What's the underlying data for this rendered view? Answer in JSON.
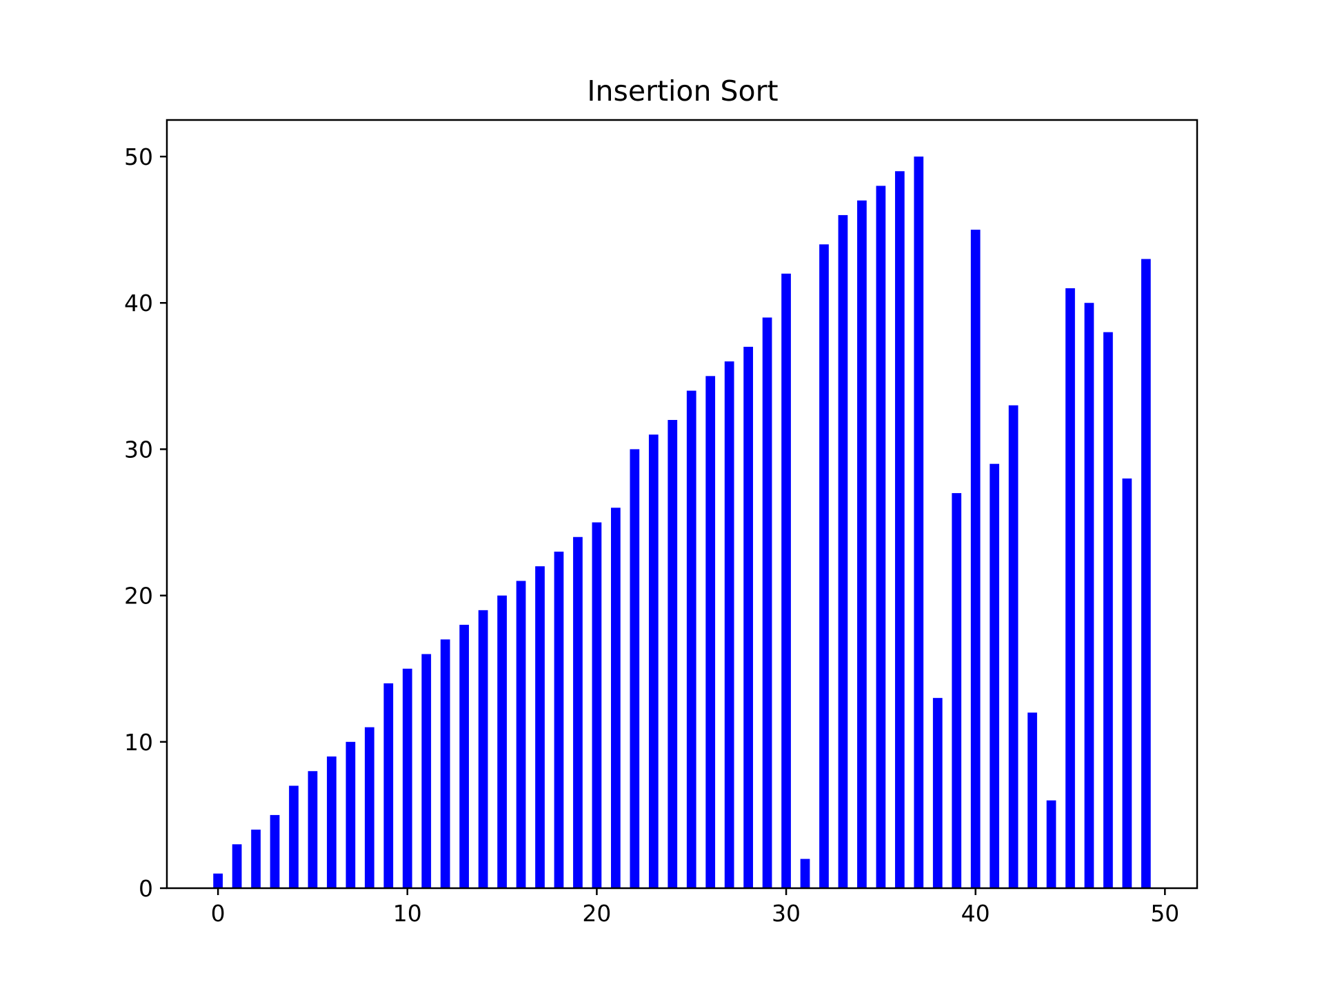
{
  "chart_data": {
    "type": "bar",
    "title": "Insertion Sort",
    "xlabel": "",
    "ylabel": "",
    "x": [
      0,
      1,
      2,
      3,
      4,
      5,
      6,
      7,
      8,
      9,
      10,
      11,
      12,
      13,
      14,
      15,
      16,
      17,
      18,
      19,
      20,
      21,
      22,
      23,
      24,
      25,
      26,
      27,
      28,
      29,
      30,
      31,
      32,
      33,
      34,
      35,
      36,
      37,
      38,
      39,
      40,
      41,
      42,
      43,
      44,
      45,
      46,
      47,
      48,
      49
    ],
    "values": [
      1,
      3,
      4,
      5,
      7,
      8,
      9,
      10,
      11,
      14,
      15,
      16,
      17,
      18,
      19,
      20,
      21,
      22,
      23,
      24,
      25,
      26,
      30,
      31,
      32,
      34,
      35,
      36,
      37,
      39,
      42,
      2,
      44,
      46,
      47,
      48,
      49,
      50,
      13,
      27,
      45,
      29,
      33,
      12,
      6,
      41,
      40,
      38,
      28,
      43
    ],
    "bar_width": 0.5,
    "xlim": [
      -2.7,
      51.7
    ],
    "ylim": [
      0,
      52.5
    ],
    "xticks": [
      0,
      10,
      20,
      30,
      40,
      50
    ],
    "yticks": [
      0,
      10,
      20,
      30,
      40,
      50
    ],
    "bar_color": "#0000ff",
    "grid": false,
    "legend": "none"
  }
}
